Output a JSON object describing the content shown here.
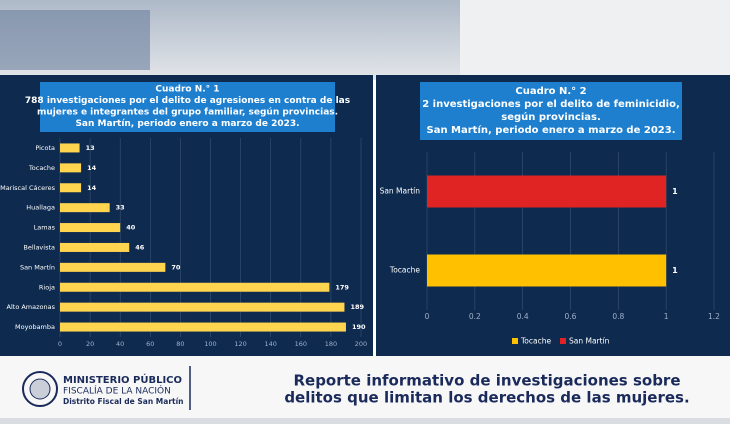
{
  "chart_data": [
    {
      "type": "bar",
      "orientation": "horizontal",
      "title_lines": [
        "Cuadro N.° 1",
        "788 investigaciones por el delito de agresiones en contra de las",
        "mujeres e integrantes del grupo familiar, según provincias.",
        "San Martín, periodo enero a marzo de 2023."
      ],
      "categories": [
        "Picota",
        "Tocache",
        "Mariscal Cáceres",
        "Huallaga",
        "Lamas",
        "Bellavista",
        "San Martín",
        "Rioja",
        "Alto Amazonas",
        "Moyobamba"
      ],
      "values": [
        13,
        14,
        14,
        33,
        40,
        46,
        70,
        179,
        189,
        190
      ],
      "color": "#ffd54f",
      "xlim": [
        0,
        200
      ],
      "xticks": [
        0,
        20,
        40,
        60,
        80,
        100,
        120,
        140,
        160,
        180,
        200
      ],
      "grid": true
    },
    {
      "type": "bar",
      "orientation": "horizontal",
      "title_lines": [
        "Cuadro N.° 2",
        "2 investigaciones por el delito de feminicidio,",
        "según provincias.",
        "San Martín, periodo enero a marzo de 2023."
      ],
      "series": [
        {
          "name": "Tocache",
          "color": "#ffc000",
          "values": [
            1
          ]
        },
        {
          "name": "San Martín",
          "color": "#e02424",
          "values": [
            1
          ]
        }
      ],
      "xlim": [
        0,
        1.2
      ],
      "xticks": [
        0,
        0.2,
        0.4,
        0.6,
        0.8,
        1,
        1.2
      ],
      "grid": true,
      "legend": "bottom"
    }
  ],
  "footer": {
    "logo_lines": [
      "MINISTERIO PÚBLICO",
      "FISCALÍA DE LA NACIÓN",
      "Distrito Fiscal de San Martín"
    ],
    "report_title": [
      "Reporte informativo de investigaciones sobre",
      "delitos que limitan los derechos de las mujeres."
    ]
  }
}
